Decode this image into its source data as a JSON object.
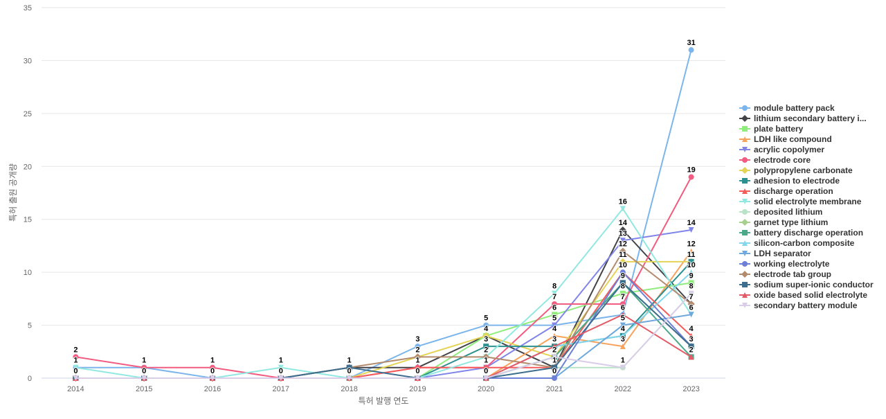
{
  "chart_data": {
    "type": "line",
    "title": "",
    "xlabel": "특허 발행 연도",
    "ylabel": "특허 출원 공개량",
    "ylim": [
      0,
      35
    ],
    "yticks": [
      0,
      5,
      10,
      15,
      20,
      25,
      30,
      35
    ],
    "grid": true,
    "legend_position": "right",
    "categories": [
      "2014",
      "2015",
      "2016",
      "2017",
      "2018",
      "2019",
      "2020",
      "2021",
      "2022",
      "2023"
    ],
    "series": [
      {
        "name": "module battery pack",
        "color": "#7cb5ec",
        "marker": "circle",
        "values": [
          1,
          1,
          0,
          0,
          0,
          3,
          5,
          5,
          6,
          31
        ]
      },
      {
        "name": "lithium secondary battery i...",
        "color": "#434348",
        "marker": "diamond",
        "values": [
          0,
          0,
          0,
          0,
          1,
          1,
          4,
          1,
          14,
          7
        ]
      },
      {
        "name": "plate battery",
        "color": "#90ed7d",
        "marker": "square",
        "values": [
          0,
          0,
          0,
          0,
          0,
          0,
          4,
          6,
          8,
          9
        ]
      },
      {
        "name": "LDH like compound",
        "color": "#f7a35c",
        "marker": "triangle",
        "values": [
          0,
          0,
          0,
          0,
          0,
          0,
          0,
          4,
          3,
          12
        ]
      },
      {
        "name": "acrylic copolymer",
        "color": "#8085e9",
        "marker": "triangle-down",
        "values": [
          0,
          0,
          0,
          0,
          0,
          0,
          1,
          5,
          13,
          14
        ]
      },
      {
        "name": "electrode core",
        "color": "#f15c80",
        "marker": "circle",
        "values": [
          2,
          1,
          1,
          0,
          0,
          1,
          1,
          7,
          7,
          19
        ]
      },
      {
        "name": "polypropylene carbonate",
        "color": "#e4d354",
        "marker": "diamond",
        "values": [
          0,
          0,
          0,
          0,
          0,
          2,
          4,
          2,
          11,
          11
        ]
      },
      {
        "name": "adhesion to electrode",
        "color": "#2b908f",
        "marker": "square",
        "values": [
          0,
          0,
          0,
          0,
          0,
          0,
          3,
          3,
          4,
          11
        ]
      },
      {
        "name": "discharge operation",
        "color": "#f45b5b",
        "marker": "triangle",
        "values": [
          0,
          0,
          0,
          0,
          0,
          1,
          1,
          1,
          10,
          4
        ]
      },
      {
        "name": "solid electrolyte membrane",
        "color": "#91e8e1",
        "marker": "triangle-down",
        "values": [
          1,
          0,
          0,
          1,
          0,
          0,
          2,
          8,
          16,
          6
        ]
      },
      {
        "name": "deposited lithium",
        "color": "#b9e3c6",
        "marker": "circle",
        "values": [
          0,
          0,
          0,
          0,
          0,
          0,
          0,
          1,
          1,
          8
        ]
      },
      {
        "name": "garnet type lithium",
        "color": "#a8d08d",
        "marker": "diamond",
        "values": [
          0,
          0,
          0,
          0,
          0,
          0,
          0,
          2,
          9,
          3
        ]
      },
      {
        "name": "battery discharge operation",
        "color": "#4aa98a",
        "marker": "square",
        "values": [
          0,
          0,
          0,
          0,
          0,
          0,
          0,
          2,
          9,
          2
        ]
      },
      {
        "name": "silicon-carbon composite",
        "color": "#82d7ec",
        "marker": "triangle",
        "values": [
          0,
          0,
          0,
          0,
          0,
          0,
          0,
          3,
          4,
          10
        ]
      },
      {
        "name": "LDH separator",
        "color": "#6fa8dc",
        "marker": "triangle-down",
        "values": [
          0,
          0,
          0,
          0,
          0,
          0,
          0,
          0,
          5,
          6
        ]
      },
      {
        "name": "working electrolyte",
        "color": "#6d7fd6",
        "marker": "circle",
        "values": [
          0,
          0,
          0,
          0,
          0,
          0,
          0,
          0,
          10,
          3
        ]
      },
      {
        "name": "electrode tab group",
        "color": "#b38b6d",
        "marker": "diamond",
        "values": [
          0,
          0,
          0,
          0,
          1,
          2,
          2,
          1,
          12,
          7
        ]
      },
      {
        "name": "sodium super-ionic conductor",
        "color": "#3d6d8f",
        "marker": "square",
        "values": [
          0,
          0,
          0,
          0,
          1,
          0,
          0,
          1,
          9,
          3
        ]
      },
      {
        "name": "oxide based solid electrolyte",
        "color": "#e45a66",
        "marker": "triangle",
        "values": [
          0,
          0,
          0,
          0,
          0,
          0,
          0,
          3,
          6,
          2
        ]
      },
      {
        "name": "secondary battery module",
        "color": "#d9cde8",
        "marker": "triangle-down",
        "values": [
          0,
          0,
          0,
          0,
          0,
          0,
          0,
          2,
          1,
          8
        ]
      }
    ],
    "data_labels": [
      {
        "x": "2014",
        "values": [
          2,
          1,
          0
        ]
      },
      {
        "x": "2015",
        "values": [
          1,
          0
        ]
      },
      {
        "x": "2016",
        "values": [
          1,
          0
        ]
      },
      {
        "x": "2017",
        "values": [
          1,
          0
        ]
      },
      {
        "x": "2018",
        "values": [
          1,
          0
        ]
      },
      {
        "x": "2019",
        "values": [
          3,
          2,
          1,
          0
        ]
      },
      {
        "x": "2020",
        "values": [
          5,
          4,
          3,
          2,
          1,
          0
        ]
      },
      {
        "x": "2021",
        "values": [
          8,
          7,
          6,
          5,
          4,
          3,
          2,
          1,
          0
        ]
      },
      {
        "x": "2022",
        "values": [
          16,
          14,
          13,
          12,
          11,
          10,
          9,
          8,
          7,
          6,
          5,
          4,
          3,
          1
        ]
      },
      {
        "x": "2023",
        "values": [
          31,
          19,
          14,
          12,
          11,
          10,
          9,
          8,
          7,
          6,
          4,
          3,
          2
        ]
      }
    ]
  }
}
